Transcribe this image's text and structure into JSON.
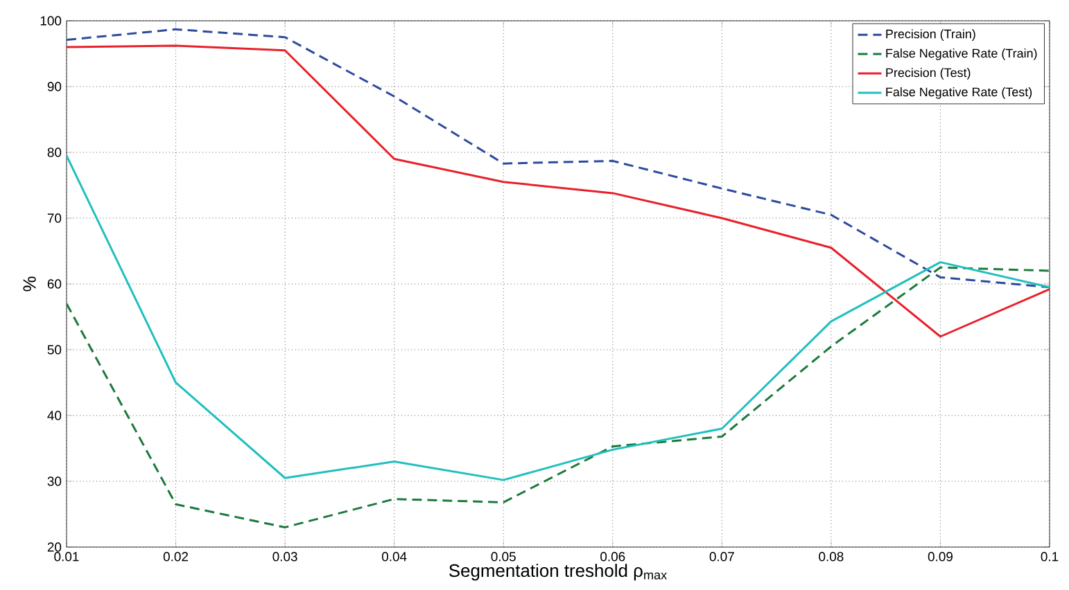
{
  "chart_data": {
    "type": "line",
    "xlabel": "Segmentation treshold ρ$_{max}$",
    "ylabel": "%",
    "x": [
      0.01,
      0.02,
      0.03,
      0.04,
      0.05,
      0.06,
      0.07,
      0.08,
      0.09,
      0.1
    ],
    "series": [
      {
        "name": "Precision (Train)",
        "color": "#2e4a9e",
        "line_style": "dashed",
        "values": [
          97.1,
          98.7,
          97.5,
          88.5,
          78.3,
          78.7,
          74.5,
          70.5,
          61,
          59.5
        ]
      },
      {
        "name": "False Negative Rate (Train)",
        "color": "#1a7a3a",
        "line_style": "dashed",
        "values": [
          57,
          26.5,
          23,
          27.3,
          26.8,
          35.3,
          36.8,
          50.5,
          62.5,
          62
        ]
      },
      {
        "name": "Precision (Test)",
        "color": "#e8202a",
        "line_style": "solid",
        "values": [
          96,
          96.2,
          95.5,
          79,
          75.5,
          73.8,
          70,
          65.5,
          52,
          59.2
        ]
      },
      {
        "name": "False Negative Rate (Test)",
        "color": "#20bfbf",
        "line_style": "solid",
        "values": [
          79.5,
          45,
          30.5,
          33,
          30.2,
          34.8,
          38,
          54.3,
          63.3,
          59.5
        ]
      }
    ],
    "xlim": [
      0.01,
      0.1
    ],
    "ylim": [
      20,
      100
    ],
    "xticks": [
      0.01,
      0.02,
      0.03,
      0.04,
      0.05,
      0.06,
      0.07,
      0.08,
      0.09,
      0.1
    ],
    "yticks": [
      20,
      30,
      40,
      50,
      60,
      70,
      80,
      90,
      100
    ],
    "grid": true,
    "legend": "top right",
    "marker": "none"
  }
}
